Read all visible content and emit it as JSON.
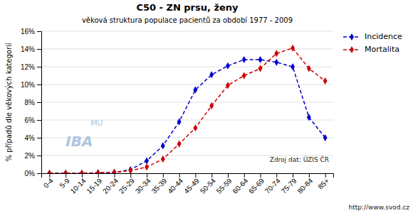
{
  "chart_data": {
    "type": "line",
    "title": "C50 - ZN prsu, ženy",
    "subtitle": "věková struktura populace pacientů za období 1977 - 2009",
    "y_label": "% případů dle věkových kategorií",
    "categories": [
      "0-4",
      "5-9",
      "10-14",
      "15-19",
      "20-24",
      "25-29",
      "30-34",
      "35-39",
      "40-44",
      "45-49",
      "50-54",
      "55-59",
      "60-64",
      "65-69",
      "70-74",
      "75-79",
      "80-84",
      "85+"
    ],
    "series": [
      {
        "name": "Incidence",
        "color": "#0000cc",
        "marker": "diamond",
        "line_style": "dashed",
        "values": [
          0.0,
          0.0,
          0.0,
          0.05,
          0.1,
          0.4,
          1.4,
          3.1,
          5.8,
          9.4,
          11.1,
          12.1,
          12.8,
          12.8,
          12.5,
          12.0,
          6.3,
          4.0
        ]
      },
      {
        "name": "Mortalita",
        "color": "#cc0000",
        "marker": "diamond",
        "line_style": "dashed",
        "values": [
          0.0,
          0.0,
          0.0,
          0.05,
          0.1,
          0.3,
          0.7,
          1.6,
          3.3,
          5.1,
          7.6,
          9.9,
          11.0,
          11.8,
          13.5,
          14.1,
          11.8,
          10.4
        ]
      }
    ],
    "ylim": [
      0,
      16
    ],
    "yticks": [
      {
        "value": 0,
        "label": "0%"
      },
      {
        "value": 2,
        "label": "2%"
      },
      {
        "value": 4,
        "label": "4%"
      },
      {
        "value": 6,
        "label": "6%"
      },
      {
        "value": 8,
        "label": "8%"
      },
      {
        "value": 10,
        "label": "10%"
      },
      {
        "value": 12,
        "label": "12%"
      },
      {
        "value": 14,
        "label": "14%"
      },
      {
        "value": 16,
        "label": "16%"
      }
    ],
    "grid": true,
    "legend": "right",
    "annotations": [
      "Zdroj dat: ÚZIS ČR",
      "http://www.svod.cz",
      "MU",
      "IBA"
    ]
  }
}
